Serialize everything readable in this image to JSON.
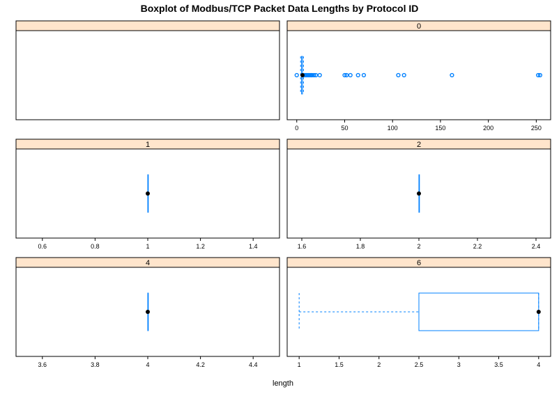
{
  "chart_data": {
    "type": "boxplot",
    "title": "Boxplot of Modbus/TCP Packet Data Lengths by Protocol ID",
    "xlabel": "length",
    "colors": {
      "strip_bg": "#ffe5cc",
      "box": "#0080ff",
      "median_dot": "#000000",
      "outlier": "#0080ff"
    },
    "panels": [
      {
        "label": "",
        "xlim": [
          0,
          1
        ],
        "ticks": [],
        "empty": true
      },
      {
        "label": "0",
        "xlim": [
          -10,
          265
        ],
        "ticks": [
          0,
          50,
          100,
          150,
          200,
          250
        ],
        "stats": {
          "min": 4,
          "q1": 5,
          "median": 6,
          "q3": 6,
          "max": 7
        },
        "outliers": [
          0,
          8,
          9,
          10,
          11,
          12,
          13,
          14,
          15,
          16,
          18,
          20,
          24,
          50,
          52,
          56,
          64,
          70,
          106,
          112,
          162,
          252,
          254
        ]
      },
      {
        "label": "1",
        "xlim": [
          0.5,
          1.5
        ],
        "ticks": [
          0.6,
          0.8,
          1.0,
          1.2,
          1.4
        ],
        "stats": {
          "min": 1,
          "q1": 1,
          "median": 1,
          "q3": 1,
          "max": 1
        },
        "outliers": []
      },
      {
        "label": "2",
        "xlim": [
          1.55,
          2.45
        ],
        "ticks": [
          1.6,
          1.8,
          2.0,
          2.2,
          2.4
        ],
        "stats": {
          "min": 2,
          "q1": 2,
          "median": 2,
          "q3": 2,
          "max": 2
        },
        "outliers": []
      },
      {
        "label": "4",
        "xlim": [
          3.5,
          4.5
        ],
        "ticks": [
          3.6,
          3.8,
          4.0,
          4.2,
          4.4
        ],
        "stats": {
          "min": 4,
          "q1": 4,
          "median": 4,
          "q3": 4,
          "max": 4
        },
        "outliers": []
      },
      {
        "label": "6",
        "xlim": [
          0.85,
          4.15
        ],
        "ticks": [
          1.0,
          1.5,
          2.0,
          2.5,
          3.0,
          3.5,
          4.0
        ],
        "stats": {
          "min": 1,
          "q1": 2.5,
          "median": 4,
          "q3": 4,
          "max": 4
        },
        "outliers": []
      }
    ]
  }
}
